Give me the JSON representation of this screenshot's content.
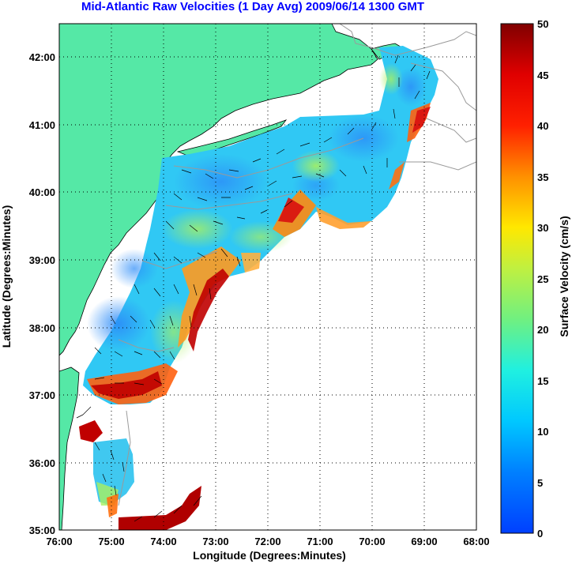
{
  "title": "Mid-Atlantic Raw Velocities (1 Day Avg) 2009/06/14 1300 GMT",
  "x_axis": {
    "label": "Longitude (Degrees:Minutes)",
    "ticks": [
      "76:00",
      "75:00",
      "74:00",
      "73:00",
      "72:00",
      "71:00",
      "70:00",
      "69:00",
      "68:00"
    ]
  },
  "y_axis": {
    "label": "Latitude (Degrees:Minutes)",
    "ticks": [
      "35:00",
      "36:00",
      "37:00",
      "38:00",
      "39:00",
      "40:00",
      "41:00",
      "42:00"
    ]
  },
  "colorbar": {
    "label": "Surface Velocity (cm/s)",
    "ticks": [
      "0",
      "5",
      "10",
      "15",
      "20",
      "25",
      "30",
      "35",
      "40",
      "45",
      "50"
    ],
    "min": 0,
    "max": 50,
    "colormap": "jet"
  },
  "map": {
    "extent": {
      "lon": [
        -76,
        -68
      ],
      "lat": [
        35,
        42.5
      ]
    },
    "grid": "dotted",
    "land_color": "#55e8a6",
    "bathymetry_color": "#9a9a9a",
    "vector_color": "#000000"
  }
}
